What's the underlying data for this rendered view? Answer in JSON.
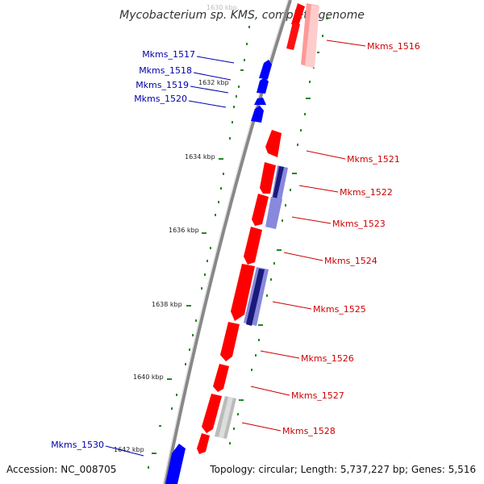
{
  "title": "Mycobacterium sp. KMS, complete genome",
  "footer": {
    "accession": "Accession: NC_008705",
    "summary": "Topology: circular; Length: 5,737,227 bp; Genes: 5,516"
  },
  "colors": {
    "forward_strand": "#ff0000",
    "reverse_strand": "#0000ff",
    "feature_dark": "#1a1a7a",
    "feature_light": "#8888dd",
    "feature_grey": "#bbbbbb",
    "backbone": "#888888",
    "ticks": "#228822",
    "label_red": "#cc0000",
    "label_blue": "#0000aa"
  },
  "scale_ticks": [
    "1630 kbp",
    "1632 kbp",
    "1634 kbp",
    "1636 kbp",
    "1638 kbp",
    "1640 kbp",
    "1642 kbp"
  ],
  "genes_forward": [
    "Mkms_1516",
    "Mkms_1521",
    "Mkms_1522",
    "Mkms_1523",
    "Mkms_1524",
    "Mkms_1525",
    "Mkms_1526",
    "Mkms_1527",
    "Mkms_1528"
  ],
  "genes_reverse": [
    "Mkms_1517",
    "Mkms_1518",
    "Mkms_1519",
    "Mkms_1520",
    "Mkms_1530"
  ]
}
